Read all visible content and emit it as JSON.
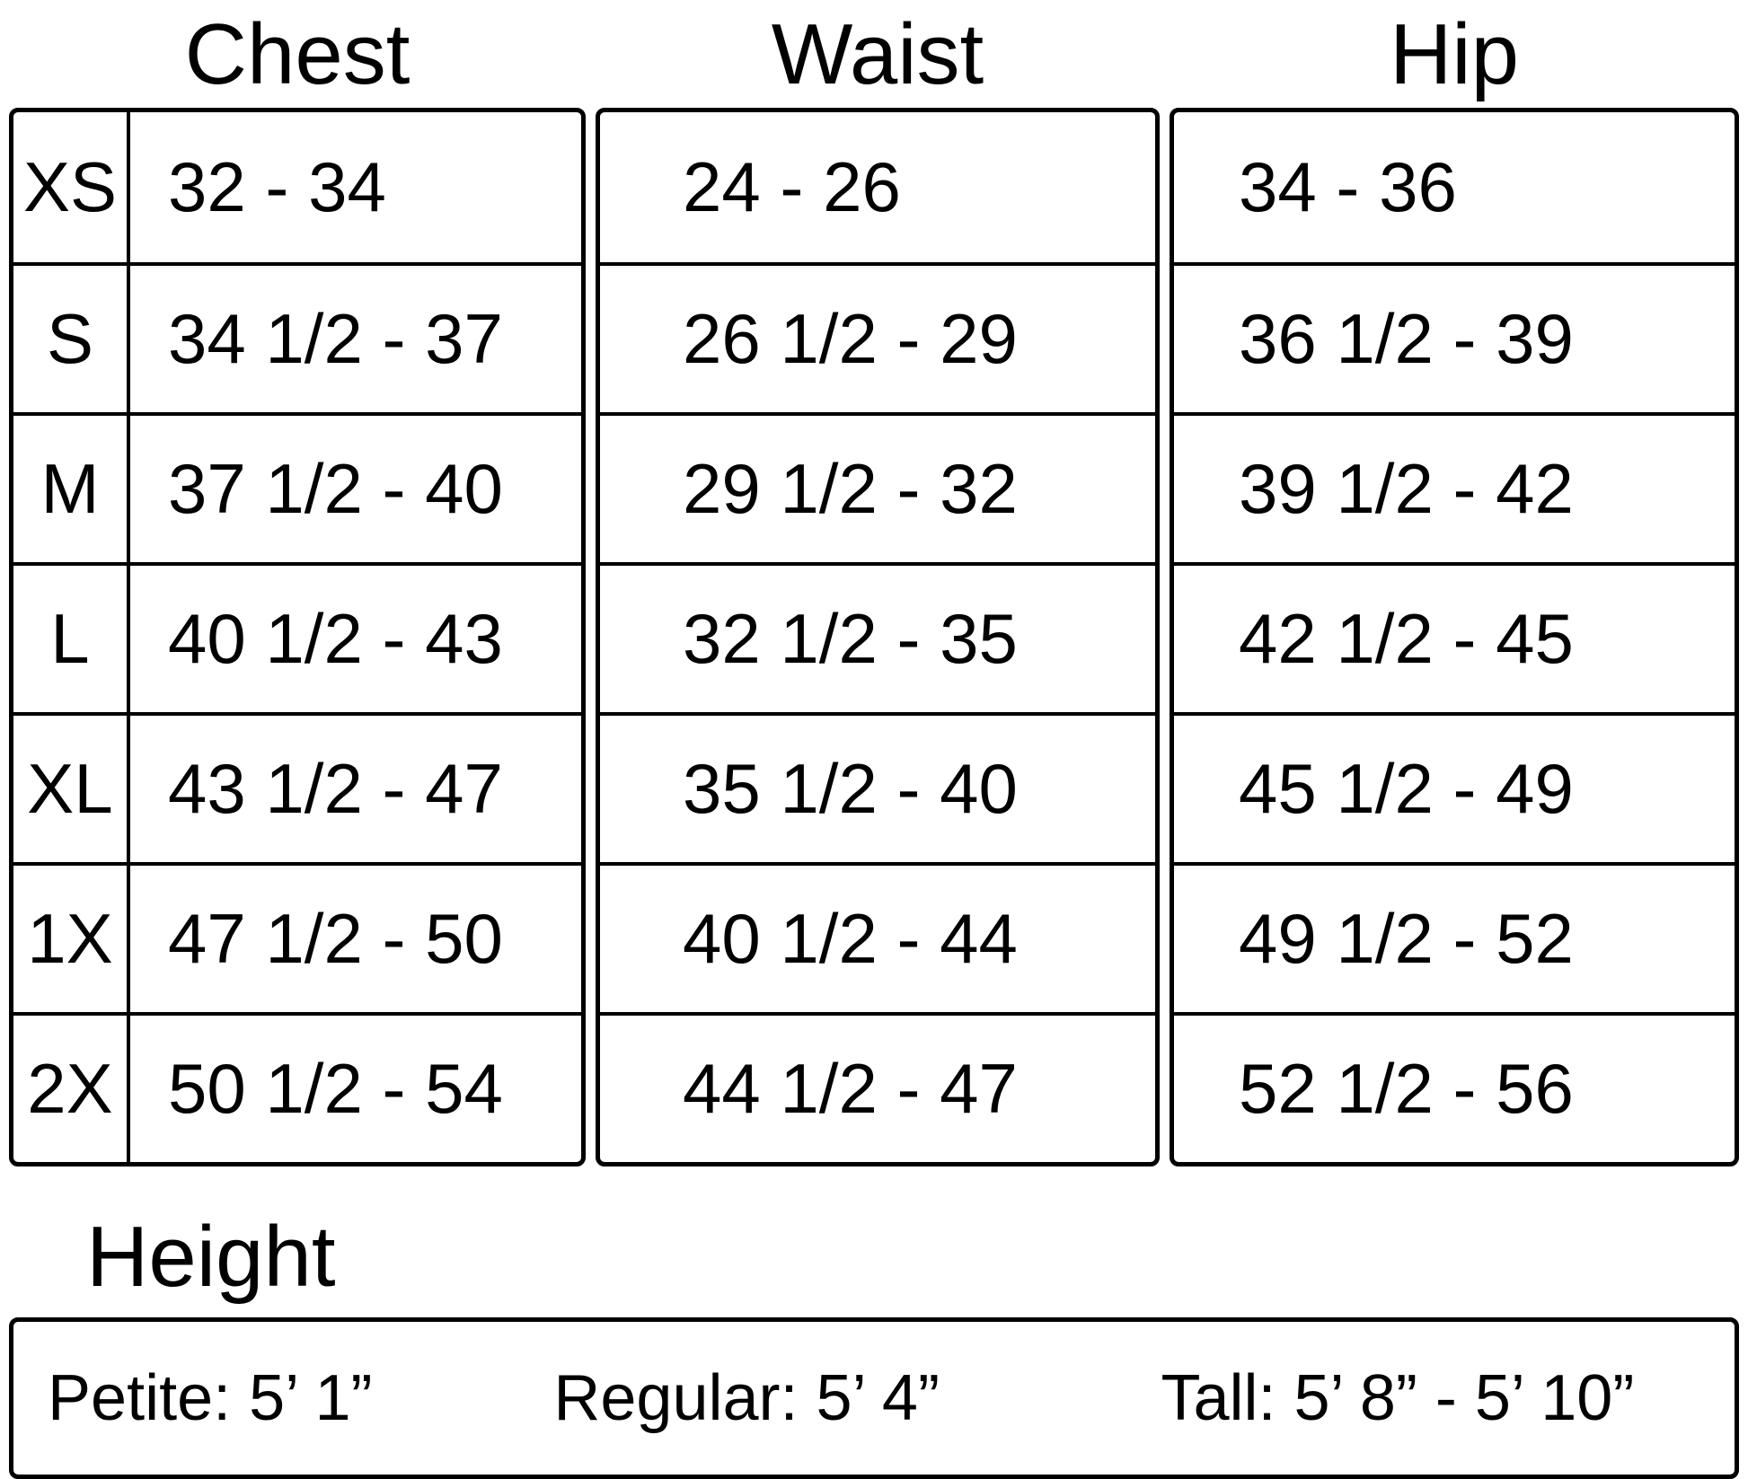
{
  "chart_data": {
    "type": "table",
    "columns": [
      "Chest",
      "Waist",
      "Hip"
    ],
    "row_labels": [
      "XS",
      "S",
      "M",
      "L",
      "XL",
      "1X",
      "2X"
    ],
    "rows": [
      {
        "size": "XS",
        "chest": "32 - 34",
        "waist": "24 - 26",
        "hip": "34 - 36"
      },
      {
        "size": "S",
        "chest": "34 1/2 - 37",
        "waist": "26 1/2 - 29",
        "hip": "36 1/2 - 39"
      },
      {
        "size": "M",
        "chest": "37 1/2 - 40",
        "waist": "29 1/2 - 32",
        "hip": "39 1/2 - 42"
      },
      {
        "size": "L",
        "chest": "40 1/2 - 43",
        "waist": "32 1/2 - 35",
        "hip": "42 1/2 - 45"
      },
      {
        "size": "XL",
        "chest": "43 1/2 - 47",
        "waist": "35 1/2 - 40",
        "hip": "45 1/2 - 49"
      },
      {
        "size": "1X",
        "chest": "47 1/2 - 50",
        "waist": "40 1/2 - 44",
        "hip": "49 1/2 - 52"
      },
      {
        "size": "2X",
        "chest": "50 1/2 - 54",
        "waist": "44 1/2 - 47",
        "hip": "52 1/2 - 56"
      }
    ]
  },
  "height_section": {
    "title": "Height",
    "petite": "Petite: 5’ 1”",
    "regular": "Regular: 5’ 4”",
    "tall": "Tall: 5’ 8” - 5’ 10”"
  },
  "colors": {
    "border": "#000000",
    "text": "#000000",
    "background": "#ffffff"
  }
}
